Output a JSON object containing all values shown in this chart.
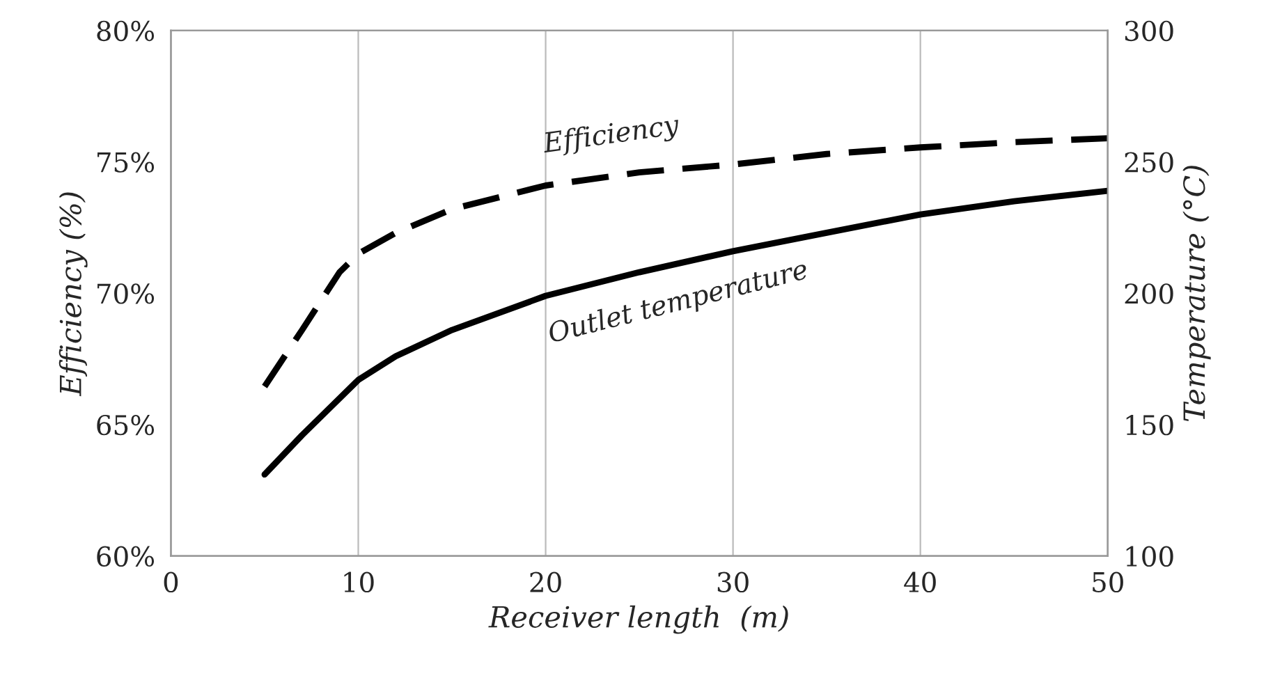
{
  "chart_data": {
    "type": "line",
    "xlabel": "Receiver length  (m)",
    "ylabel": "Efficiency (%)",
    "y2label": "Temperature (°C)",
    "xlim": [
      0,
      50
    ],
    "xticks": [
      0,
      10,
      20,
      30,
      40,
      50
    ],
    "ylim": [
      60,
      80
    ],
    "yticks": [
      {
        "value": 60,
        "label": "60%"
      },
      {
        "value": 65,
        "label": "65%"
      },
      {
        "value": 70,
        "label": "70%"
      },
      {
        "value": 75,
        "label": "75%"
      },
      {
        "value": 80,
        "label": "80%"
      }
    ],
    "y2lim": [
      100,
      300
    ],
    "y2ticks": [
      100,
      150,
      200,
      250,
      300
    ],
    "grid": "x",
    "marker": "none",
    "series": [
      {
        "name": "Efficiency",
        "color": "#000000",
        "line_style": "dashed",
        "x": [
          5,
          7,
          9,
          10,
          12,
          15,
          20,
          25,
          30,
          35,
          40,
          45,
          50
        ],
        "values": [
          66.45,
          68.6,
          70.8,
          71.5,
          72.3,
          73.2,
          74.1,
          74.6,
          74.9,
          75.3,
          75.55,
          75.75,
          75.9
        ]
      },
      {
        "name": "Outlet temperature",
        "color": "#000000",
        "line_style": "solid",
        "axis": "y2",
        "x": [
          5,
          7,
          10,
          12,
          15,
          20,
          25,
          30,
          35,
          40,
          45,
          50
        ],
        "values": [
          131,
          146,
          167,
          176,
          186,
          199,
          208,
          216,
          223,
          230,
          235,
          239
        ]
      }
    ]
  }
}
